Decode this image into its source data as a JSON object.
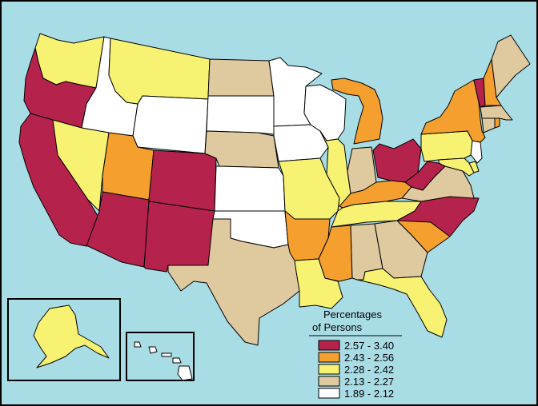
{
  "legend": {
    "title_line1": "Percentages",
    "title_line2": "of Persons",
    "classes": [
      {
        "label": "2.57 - 3.40",
        "color": "#b5234d"
      },
      {
        "label": "2.43 - 2.56",
        "color": "#f5a02e"
      },
      {
        "label": "2.28 - 2.42",
        "color": "#f8f272"
      },
      {
        "label": "2.13 - 2.27",
        "color": "#dfcaa0"
      },
      {
        "label": "1.89 - 2.12",
        "color": "#ffffff"
      }
    ]
  },
  "colors": {
    "ocean": "#a9dde6",
    "border": "#000000"
  },
  "state_classes": {
    "WA": 2,
    "OR": 0,
    "CA": 0,
    "ID": 4,
    "NV": 2,
    "MT": 2,
    "WY": 4,
    "UT": 1,
    "AZ": 0,
    "CO": 0,
    "NM": 0,
    "ND": 3,
    "SD": 4,
    "NE": 3,
    "KS": 4,
    "OK": 4,
    "TX": 3,
    "MN": 4,
    "IA": 4,
    "MO": 2,
    "AR": 1,
    "LA": 2,
    "WI": 4,
    "IL": 2,
    "MI": 1,
    "IN": 3,
    "OH": 0,
    "KY": 1,
    "TN": 2,
    "MS": 1,
    "AL": 3,
    "GA": 3,
    "FL": 2,
    "SC": 1,
    "NC": 0,
    "VA": 3,
    "WV": 0,
    "PA": 2,
    "NY": 1,
    "ME": 3,
    "VT": 0,
    "NH": 1,
    "MA": 3,
    "CT": 3,
    "RI": 1,
    "NJ": 4,
    "DE": 2,
    "MD": 2,
    "AK": 2,
    "HI": 4
  }
}
